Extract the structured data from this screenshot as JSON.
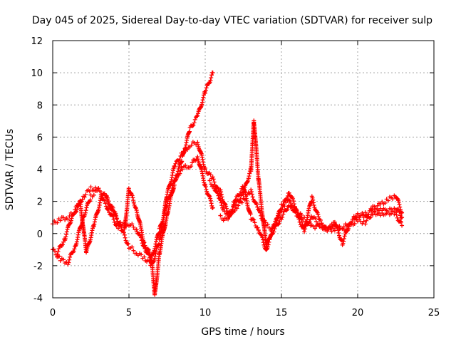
{
  "chart_data": {
    "type": "scatter",
    "title": "Day 045 of 2025, Sidereal Day-to-day VTEC variation (SDTVAR) for receiver sulp",
    "xlabel": "GPS time / hours",
    "ylabel": "SDTVAR / TECUs",
    "xlim": [
      0,
      25
    ],
    "ylim": [
      -4,
      12
    ],
    "xticks": [
      0,
      5,
      10,
      15,
      20,
      25
    ],
    "yticks": [
      -4,
      -2,
      0,
      2,
      4,
      6,
      8,
      10,
      12
    ],
    "grid": true,
    "marker": "plus",
    "color": "#ff0000",
    "series": [
      {
        "name": "trace1",
        "x": [
          0.0,
          0.5,
          1.0,
          1.5,
          2.0,
          2.5,
          3.0,
          3.5,
          4.0,
          4.5,
          5.0,
          5.5,
          6.0,
          6.5,
          6.7,
          7.0,
          7.5,
          8.0,
          8.5,
          9.0,
          9.5,
          10.0,
          10.5
        ],
        "y": [
          0.6,
          0.9,
          1.0,
          1.4,
          2.3,
          2.8,
          2.7,
          2.2,
          1.2,
          0.5,
          0.6,
          0.3,
          -0.8,
          -1.8,
          -3.8,
          -1.2,
          1.2,
          3.2,
          4.7,
          6.5,
          7.3,
          8.8,
          10.0
        ]
      },
      {
        "name": "trace2",
        "x": [
          0.0,
          0.5,
          1.0,
          1.5,
          2.0,
          2.5,
          3.0,
          3.5,
          4.0,
          4.5,
          5.0,
          5.5,
          6.0,
          6.5,
          7.0,
          7.5,
          8.0,
          8.5,
          9.0,
          9.5,
          10.0,
          10.5,
          11.0
        ],
        "y": [
          -1.0,
          -1.6,
          -1.8,
          -0.7,
          1.0,
          2.3,
          2.7,
          2.3,
          1.4,
          0.3,
          -0.8,
          -1.2,
          -1.5,
          -2.0,
          -0.5,
          2.4,
          4.2,
          5.0,
          5.5,
          5.7,
          4.0,
          3.4,
          2.4
        ]
      },
      {
        "name": "trace3",
        "x": [
          0.3,
          0.8,
          1.3,
          1.8,
          2.2,
          2.7,
          3.2,
          3.7,
          4.2,
          4.7,
          5.0,
          5.5,
          6.0,
          6.5,
          7.0,
          7.5,
          8.0,
          8.5,
          9.0,
          9.5,
          10.0,
          10.5
        ],
        "y": [
          -1.2,
          -0.3,
          1.2,
          2.0,
          -1.2,
          0.5,
          2.3,
          1.4,
          0.5,
          0.2,
          2.8,
          1.5,
          -0.6,
          -1.5,
          0.2,
          1.8,
          3.3,
          4.1,
          4.2,
          4.8,
          3.0,
          1.6
        ]
      },
      {
        "name": "trace4",
        "x": [
          11.0,
          11.5,
          12.0,
          12.5,
          13.0,
          13.2,
          13.5,
          14.0,
          14.5,
          15.0,
          15.5,
          16.0,
          16.5,
          17.0,
          17.5,
          18.0,
          18.5,
          19.0,
          19.5,
          20.0,
          20.5,
          21.0,
          21.5,
          22.0,
          22.5,
          22.9
        ],
        "y": [
          2.6,
          1.2,
          1.8,
          2.5,
          4.0,
          7.0,
          3.3,
          -0.8,
          0.5,
          1.5,
          2.6,
          1.5,
          0.3,
          2.2,
          0.8,
          0.2,
          0.7,
          -0.6,
          0.7,
          1.2,
          1.0,
          1.6,
          1.8,
          2.1,
          2.4,
          1.3
        ]
      },
      {
        "name": "trace5",
        "x": [
          11.0,
          11.5,
          12.0,
          12.5,
          13.0,
          13.5,
          14.0,
          14.5,
          15.0,
          15.5,
          16.0,
          16.5,
          17.0,
          17.5,
          18.0,
          18.5,
          19.0,
          19.5,
          20.0,
          20.5,
          21.0,
          21.5,
          22.0,
          22.5,
          22.9
        ],
        "y": [
          1.0,
          0.8,
          2.1,
          2.9,
          1.0,
          0.3,
          -1.0,
          0.3,
          1.7,
          2.0,
          1.1,
          0.2,
          1.1,
          0.5,
          0.3,
          0.6,
          0.2,
          0.5,
          0.8,
          0.7,
          1.3,
          1.6,
          1.3,
          1.2,
          0.5
        ]
      },
      {
        "name": "trace6",
        "x": [
          10.3,
          10.6,
          10.9,
          11.2,
          11.6,
          12.0,
          12.5,
          13.0,
          13.5,
          14.0,
          14.5,
          15.0,
          15.5,
          16.0,
          16.5,
          17.0,
          17.5,
          18.0,
          18.5,
          19.0,
          19.5,
          20.0,
          20.5,
          21.0,
          21.5,
          22.0,
          22.5,
          22.9
        ],
        "y": [
          3.2,
          2.9,
          2.2,
          1.5,
          1.1,
          1.6,
          2.1,
          2.6,
          1.4,
          0.5,
          0.2,
          1.0,
          1.8,
          1.4,
          0.9,
          0.4,
          0.5,
          0.2,
          0.3,
          0.4,
          0.6,
          1.1,
          1.2,
          1.4,
          1.1,
          1.4,
          1.6,
          1.0
        ]
      }
    ]
  }
}
